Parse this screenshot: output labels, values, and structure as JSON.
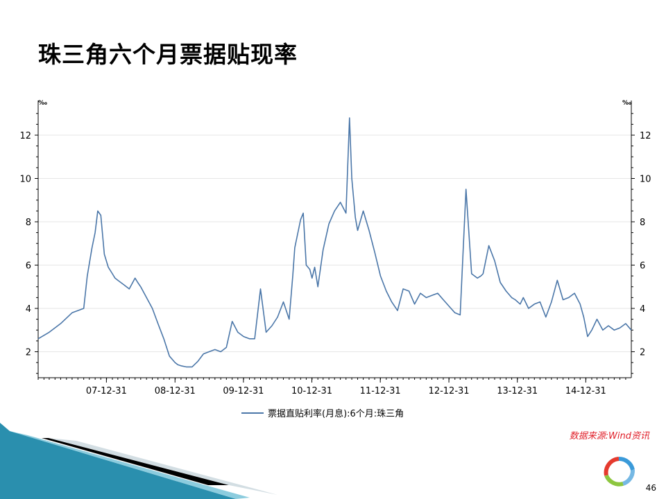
{
  "slide": {
    "title": "珠三角六个月票据贴现率",
    "source": "数据来源:Wind资讯",
    "page_number": "46"
  },
  "colors": {
    "series": "#4a76a8",
    "grid": "#e6e6e6",
    "source_text": "#e0202a",
    "deco_teal": "#2a8fae"
  },
  "icons": [
    "wind-logo-icon"
  ],
  "chart_data": {
    "type": "line",
    "title": "",
    "unit": "‰",
    "xlabel": "",
    "ylabel": "",
    "x_tick_labels": [
      "07-12-31",
      "08-12-31",
      "09-12-31",
      "10-12-31",
      "11-12-31",
      "12-12-31",
      "13-12-31",
      "14-12-31"
    ],
    "y_ticks": [
      2,
      4,
      6,
      8,
      10,
      12
    ],
    "ylim": [
      0.8,
      13.6
    ],
    "xlim": [
      "2007-01-01",
      "2015-08-31"
    ],
    "grid": true,
    "legend_position": "bottom",
    "series": [
      {
        "name": "票据直贴利率(月息):6个月:珠三角",
        "x": [
          "2007-01-01",
          "2007-03-01",
          "2007-05-01",
          "2007-07-01",
          "2007-08-01",
          "2007-09-01",
          "2007-09-20",
          "2007-10-15",
          "2007-11-01",
          "2007-11-15",
          "2007-12-01",
          "2007-12-20",
          "2008-01-10",
          "2008-02-01",
          "2008-02-15",
          "2008-03-01",
          "2008-04-01",
          "2008-05-01",
          "2008-06-01",
          "2008-06-15",
          "2008-07-01",
          "2008-08-01",
          "2008-09-01",
          "2008-10-01",
          "2008-11-01",
          "2008-12-01",
          "2008-12-31",
          "2009-01-15",
          "2009-02-01",
          "2009-03-01",
          "2009-04-01",
          "2009-05-01",
          "2009-06-01",
          "2009-07-01",
          "2009-08-01",
          "2009-09-01",
          "2009-10-01",
          "2009-11-01",
          "2009-12-01",
          "2010-01-01",
          "2010-02-01",
          "2010-03-01",
          "2010-04-01",
          "2010-05-01",
          "2010-06-01",
          "2010-07-01",
          "2010-08-01",
          "2010-09-01",
          "2010-09-20",
          "2010-10-01",
          "2010-11-01",
          "2010-11-15",
          "2010-12-01",
          "2010-12-20",
          "2011-01-01",
          "2011-01-15",
          "2011-02-01",
          "2011-03-01",
          "2011-04-01",
          "2011-05-01",
          "2011-06-01",
          "2011-07-01",
          "2011-07-20",
          "2011-08-01",
          "2011-08-20",
          "2011-09-01",
          "2011-10-01",
          "2011-11-01",
          "2011-12-01",
          "2012-01-01",
          "2012-02-01",
          "2012-03-01",
          "2012-04-01",
          "2012-05-01",
          "2012-06-01",
          "2012-07-01",
          "2012-08-01",
          "2012-09-01",
          "2012-10-01",
          "2012-11-01",
          "2012-12-01",
          "2013-01-01",
          "2013-02-01",
          "2013-03-01",
          "2013-04-01",
          "2013-05-01",
          "2013-06-01",
          "2013-06-20",
          "2013-07-01",
          "2013-08-01",
          "2013-09-01",
          "2013-10-01",
          "2013-11-01",
          "2013-12-01",
          "2013-12-20",
          "2014-01-15",
          "2014-02-01",
          "2014-03-01",
          "2014-04-01",
          "2014-05-01",
          "2014-06-01",
          "2014-07-01",
          "2014-08-01",
          "2014-09-01",
          "2014-10-01",
          "2014-11-01",
          "2014-12-01",
          "2014-12-20",
          "2015-01-10",
          "2015-02-01",
          "2015-03-01",
          "2015-04-01",
          "2015-05-01",
          "2015-06-01",
          "2015-07-01",
          "2015-08-01",
          "2015-08-31"
        ],
        "values": [
          2.6,
          2.9,
          3.3,
          3.8,
          3.9,
          4.0,
          5.5,
          6.8,
          7.5,
          8.5,
          8.3,
          6.5,
          5.9,
          5.6,
          5.4,
          5.3,
          5.1,
          4.9,
          5.4,
          5.2,
          5.0,
          4.5,
          4.0,
          3.3,
          2.6,
          1.8,
          1.5,
          1.4,
          1.35,
          1.3,
          1.3,
          1.55,
          1.9,
          2.0,
          2.1,
          2.0,
          2.2,
          3.4,
          2.9,
          2.7,
          2.6,
          2.6,
          4.9,
          2.9,
          3.2,
          3.6,
          4.3,
          3.5,
          5.5,
          6.8,
          8.1,
          8.4,
          6.0,
          5.8,
          5.4,
          5.9,
          5.0,
          6.7,
          7.9,
          8.5,
          8.9,
          8.4,
          12.8,
          10.0,
          8.2,
          7.6,
          8.5,
          7.6,
          6.6,
          5.5,
          4.8,
          4.3,
          3.9,
          4.9,
          4.8,
          4.2,
          4.7,
          4.5,
          4.6,
          4.7,
          4.4,
          4.1,
          3.8,
          3.7,
          9.5,
          5.6,
          5.4,
          5.5,
          5.6,
          6.9,
          6.2,
          5.2,
          4.8,
          4.5,
          4.4,
          4.2,
          4.5,
          4.0,
          4.2,
          4.3,
          3.6,
          4.3,
          5.3,
          4.4,
          4.5,
          4.7,
          4.2,
          3.6,
          2.7,
          3.0,
          3.5,
          3.0,
          3.2,
          3.0,
          3.1,
          3.3,
          3.0
        ]
      }
    ]
  }
}
